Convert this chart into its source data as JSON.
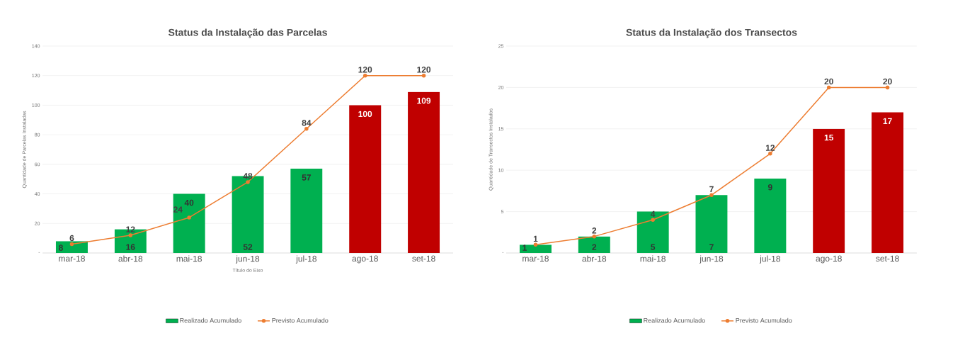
{
  "chart_data": [
    {
      "type": "bar",
      "title": "Status da Instalação das Parcelas",
      "xlabel": "Título do Eixo",
      "ylabel": "Quantidade de Parcelas Instaladas",
      "categories": [
        "mar-18",
        "abr-18",
        "mai-18",
        "jun-18",
        "jul-18",
        "ago-18",
        "set-18"
      ],
      "series": [
        {
          "name": "Realizado Acumulado",
          "color": "#00b050",
          "colors": [
            "#00b050",
            "#00b050",
            "#00b050",
            "#00b050",
            "#00b050",
            "#c00000",
            "#c00000"
          ],
          "values": [
            8,
            16,
            40,
            52,
            57,
            100,
            109
          ]
        },
        {
          "name": "Previsto Acumulado",
          "type": "line",
          "color": "#ed7d31",
          "values": [
            6,
            12,
            24,
            48,
            84,
            120,
            120
          ]
        }
      ],
      "ylim": [
        0,
        140
      ],
      "yticks": [
        {
          "value": 0,
          "label": "-"
        },
        20,
        40,
        60,
        80,
        100,
        120,
        140
      ],
      "grid": "y",
      "legend": "bottom",
      "marker": "circle",
      "line_style": "solid",
      "data_labels": true
    },
    {
      "type": "bar",
      "title": "Status da Instalação dos Transectos",
      "ylabel": "Quantidade de Transectos Instalados",
      "categories": [
        "mar-18",
        "abr-18",
        "mai-18",
        "jun-18",
        "jul-18",
        "ago-18",
        "set-18"
      ],
      "series": [
        {
          "name": "Realizado Acumulado",
          "color": "#00b050",
          "colors": [
            "#00b050",
            "#00b050",
            "#00b050",
            "#00b050",
            "#00b050",
            "#c00000",
            "#c00000"
          ],
          "values": [
            1,
            2,
            5,
            7,
            9,
            15,
            17
          ]
        },
        {
          "name": "Previsto Acumulado",
          "type": "line",
          "color": "#ed7d31",
          "values": [
            1,
            2,
            4,
            7,
            12,
            20,
            20
          ]
        }
      ],
      "ylim": [
        0,
        25
      ],
      "yticks": [
        {
          "value": 0,
          "label": "-"
        },
        5,
        10,
        15,
        20,
        25
      ],
      "grid": "y",
      "legend": "bottom",
      "marker": "circle",
      "line_style": "solid",
      "data_labels": true
    }
  ]
}
